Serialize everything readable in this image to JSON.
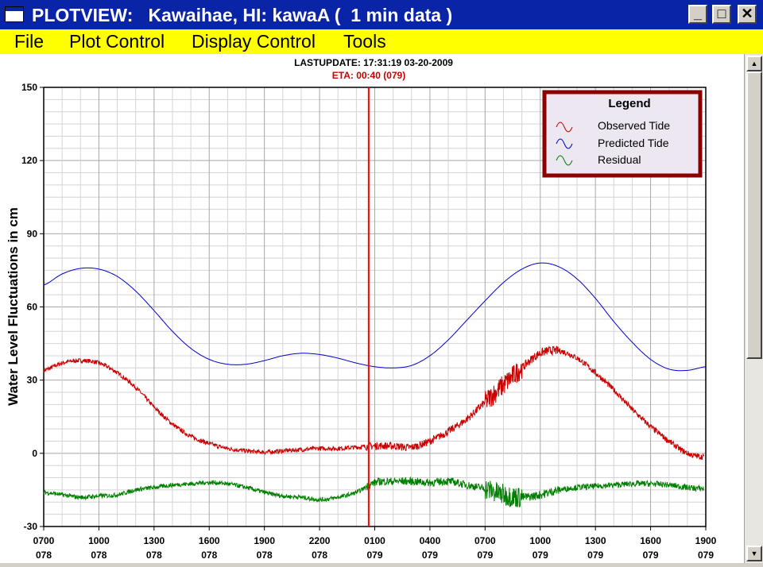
{
  "window": {
    "title": "PLOTVIEW:   Kawaihae, HI: kawaA (  1 min data )",
    "minimize_label": "_",
    "maximize_label": "□",
    "close_label": "✕"
  },
  "menu": {
    "items": [
      "File",
      "Plot Control",
      "Display Control",
      "Tools"
    ]
  },
  "header": {
    "lastupdate": "LASTUPDATE: 17:31:19  03-20-2009",
    "eta": "ETA: 00:40 (079)"
  },
  "legend": {
    "title": "Legend",
    "entries": [
      "Observed Tide",
      "Predicted Tide",
      "Residual"
    ]
  },
  "colors": {
    "observed": "#cc0000",
    "predicted": "#0000cc",
    "residual": "#008000",
    "eta_line": "#ff0000",
    "legend_border": "#8b0000",
    "legend_bg": "#ece7f0"
  },
  "chart_data": {
    "type": "line",
    "ylabel": "Water Level Fluctuations in cm",
    "xlabel": "",
    "ylim": [
      -30,
      150
    ],
    "xlim": [
      0,
      36
    ],
    "yticks": [
      -30,
      0,
      30,
      60,
      90,
      120,
      150
    ],
    "xticks": [
      {
        "x": 0,
        "time": "0700",
        "day": "078"
      },
      {
        "x": 3,
        "time": "1000",
        "day": "078"
      },
      {
        "x": 6,
        "time": "1300",
        "day": "078"
      },
      {
        "x": 9,
        "time": "1600",
        "day": "078"
      },
      {
        "x": 12,
        "time": "1900",
        "day": "078"
      },
      {
        "x": 15,
        "time": "2200",
        "day": "078"
      },
      {
        "x": 18,
        "time": "0100",
        "day": "079"
      },
      {
        "x": 21,
        "time": "0400",
        "day": "079"
      },
      {
        "x": 24,
        "time": "0700",
        "day": "079"
      },
      {
        "x": 27,
        "time": "1000",
        "day": "079"
      },
      {
        "x": 30,
        "time": "1300",
        "day": "079"
      },
      {
        "x": 33,
        "time": "1600",
        "day": "079"
      },
      {
        "x": 36,
        "time": "1900",
        "day": "079"
      }
    ],
    "eta_x": 17.67,
    "grid": true,
    "legend_position": "top-right",
    "series": [
      {
        "name": "Predicted Tide",
        "x": [
          0,
          1,
          2,
          3,
          4,
          5,
          6,
          7,
          8,
          9,
          10,
          11,
          12,
          13,
          14,
          15,
          16,
          17,
          18,
          19,
          20,
          21,
          22,
          23,
          24,
          25,
          26,
          27,
          28,
          29,
          30,
          31,
          32,
          33,
          34,
          35,
          36
        ],
        "values": [
          69,
          73.5,
          75.8,
          75.5,
          72.5,
          66.5,
          58.5,
          50,
          43,
          38.5,
          36.5,
          36.5,
          38,
          40,
          41,
          40.5,
          39,
          37,
          35.5,
          35,
          36,
          40,
          46.5,
          54.5,
          62.5,
          70,
          75.5,
          78,
          76.5,
          71.5,
          63.5,
          54,
          45.5,
          38.5,
          34.5,
          34,
          35.5
        ]
      },
      {
        "name": "Observed Tide",
        "x": [
          0,
          1,
          2,
          3,
          4,
          5,
          6,
          7,
          8,
          9,
          10,
          11,
          12,
          13,
          14,
          15,
          16,
          17,
          18,
          19,
          20,
          21,
          22,
          23,
          24,
          25,
          26,
          27,
          28,
          29,
          30,
          31,
          32,
          33,
          34,
          35,
          35.9
        ],
        "values": [
          34,
          37,
          38,
          37,
          33,
          27,
          19,
          12,
          7,
          4,
          2,
          1,
          0.5,
          1,
          1.5,
          2,
          2,
          2.5,
          3,
          3,
          2.5,
          5,
          9,
          14,
          21,
          28,
          35,
          41,
          42,
          39,
          33,
          26,
          18,
          11,
          5,
          0,
          -1.5
        ]
      },
      {
        "name": "Residual",
        "x": [
          0,
          1,
          2,
          3,
          4,
          5,
          6,
          7,
          8,
          9,
          10,
          11,
          12,
          13,
          14,
          15,
          16,
          17,
          18,
          19,
          20,
          21,
          22,
          23,
          24,
          25,
          26,
          27,
          28,
          29,
          30,
          31,
          32,
          33,
          34,
          35,
          35.9
        ],
        "values": [
          -16,
          -17,
          -18,
          -17.5,
          -17,
          -15,
          -14,
          -13,
          -12.5,
          -12,
          -12.5,
          -14,
          -16,
          -17.5,
          -18,
          -19,
          -18,
          -16,
          -12,
          -11.5,
          -11.5,
          -12,
          -11.5,
          -13,
          -14.5,
          -17,
          -18,
          -17,
          -15,
          -14,
          -13.5,
          -13,
          -12.5,
          -12.5,
          -13,
          -14,
          -14.5
        ]
      }
    ]
  }
}
